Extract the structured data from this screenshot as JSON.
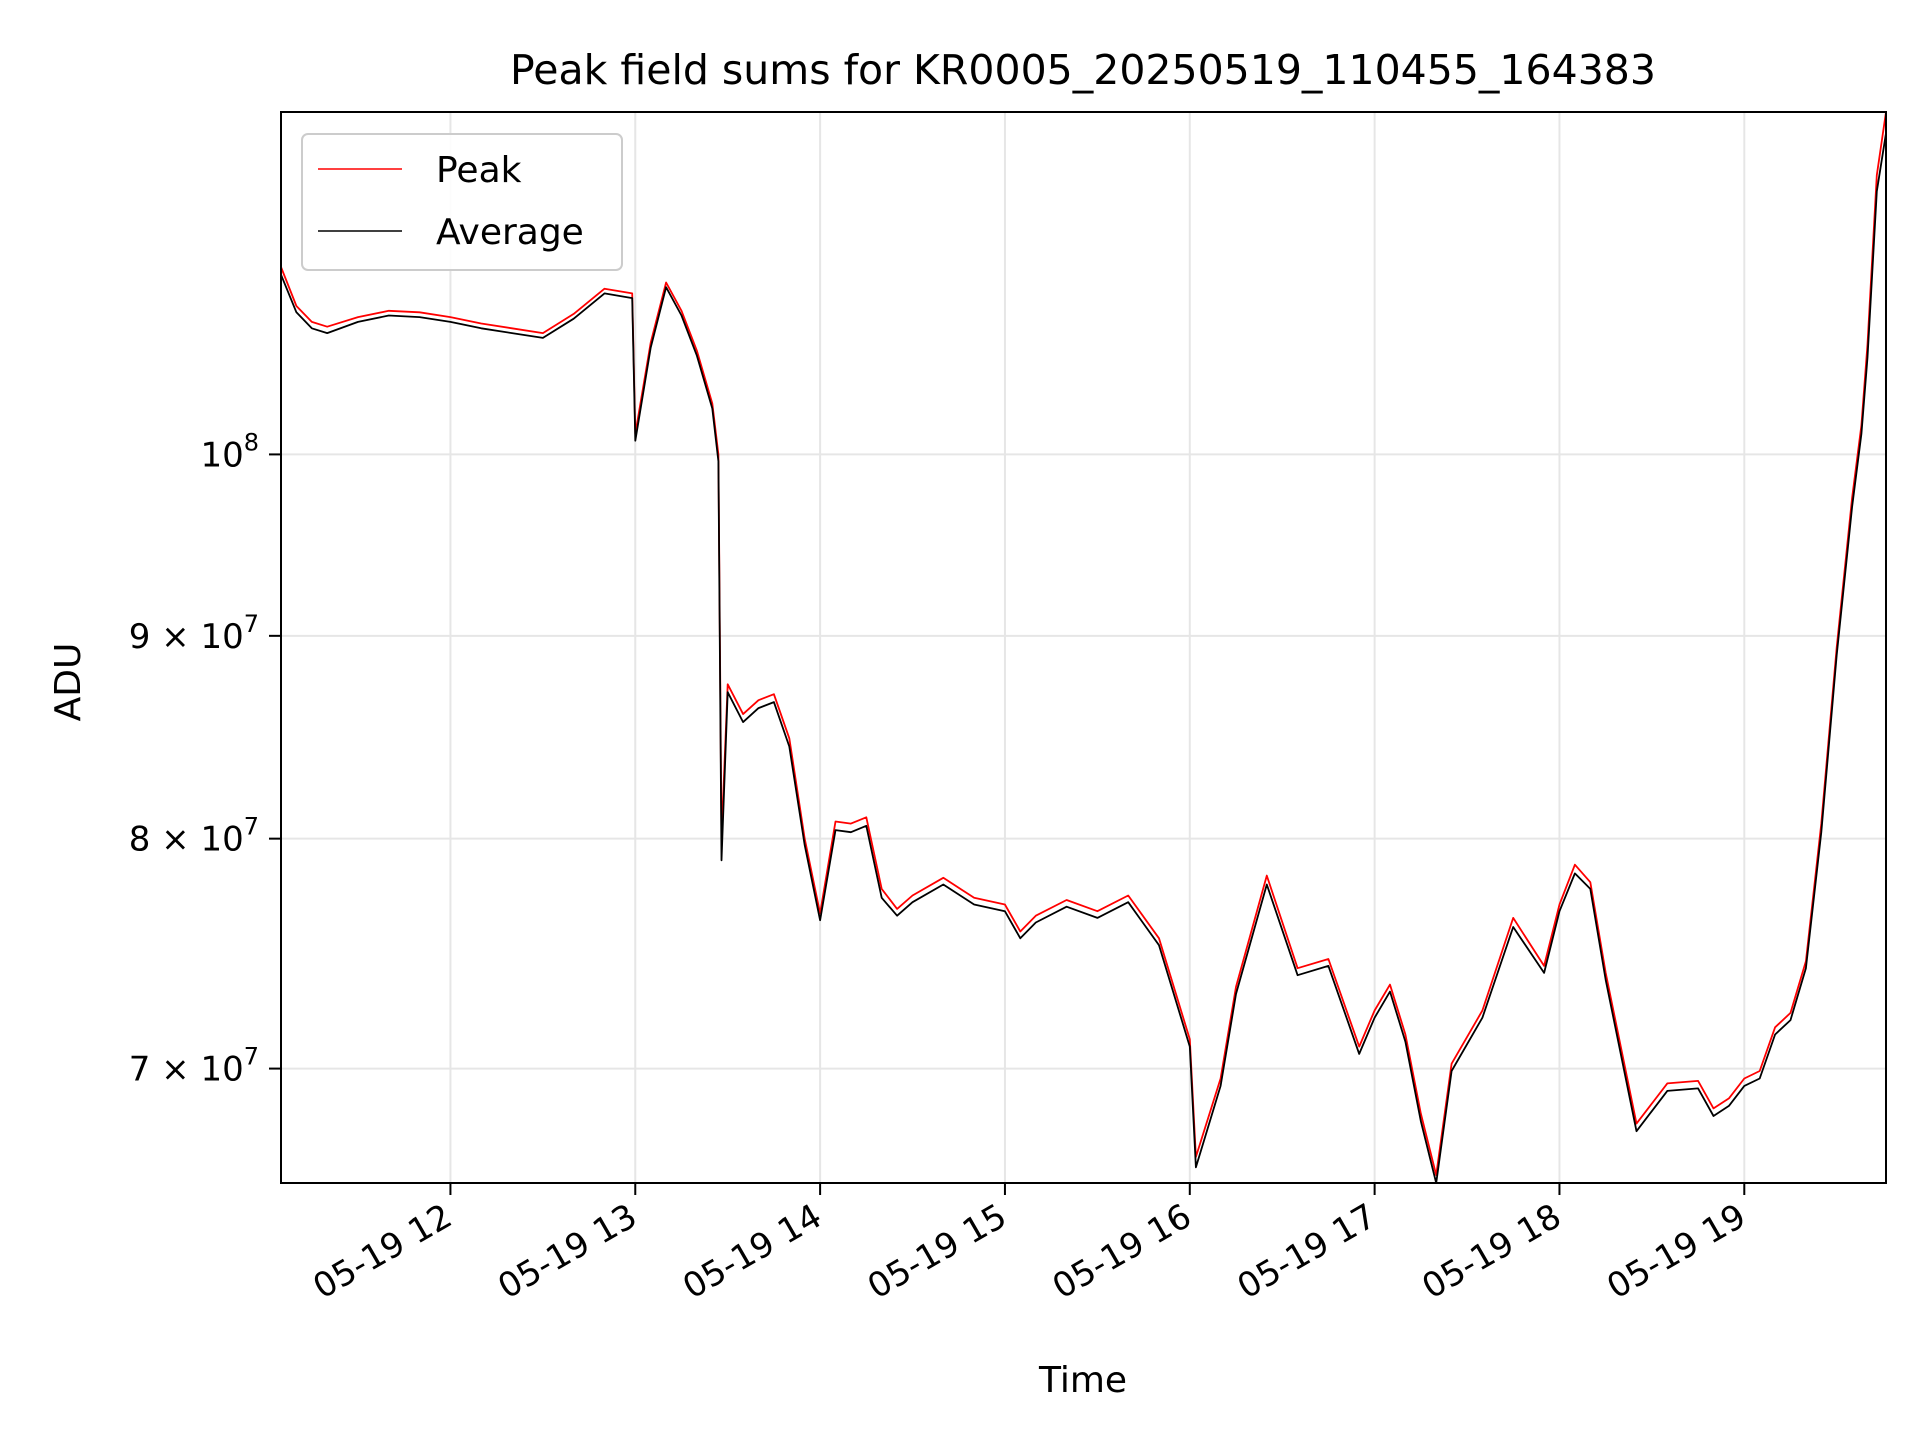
{
  "chart_data": {
    "type": "line",
    "title": "Peak field sums for KR0005_20250519_110455_164383",
    "xlabel": "Time",
    "ylabel": "ADU",
    "yscale": "log",
    "grid": true,
    "legend_position": "top-left",
    "xlim": [
      "05-19 11:05",
      "05-19 19:46"
    ],
    "ylim": [
      65500000,
      122000000
    ],
    "x_ticks": [
      {
        "value": "05-19 12:00",
        "label": "05-19 12"
      },
      {
        "value": "05-19 13:00",
        "label": "05-19 13"
      },
      {
        "value": "05-19 14:00",
        "label": "05-19 14"
      },
      {
        "value": "05-19 15:00",
        "label": "05-19 15"
      },
      {
        "value": "05-19 16:00",
        "label": "05-19 16"
      },
      {
        "value": "05-19 17:00",
        "label": "05-19 17"
      },
      {
        "value": "05-19 18:00",
        "label": "05-19 18"
      },
      {
        "value": "05-19 19:00",
        "label": "05-19 19"
      }
    ],
    "y_ticks": [
      {
        "value": 70000000,
        "label": "7 × 10⁷",
        "mantissa": "7 × 10",
        "exp": "7"
      },
      {
        "value": 80000000,
        "label": "8 × 10⁷",
        "mantissa": "8 × 10",
        "exp": "7"
      },
      {
        "value": 90000000,
        "label": "9 × 10⁷",
        "mantissa": "9 × 10",
        "exp": "7"
      },
      {
        "value": 100000000,
        "label": "10⁸",
        "mantissa": "10",
        "exp": "8"
      }
    ],
    "series": [
      {
        "name": "Peak",
        "color": "#ff0000",
        "x": [
          "05-19 11:05",
          "05-19 11:10",
          "05-19 11:15",
          "05-19 11:20",
          "05-19 11:30",
          "05-19 11:40",
          "05-19 11:50",
          "05-19 12:00",
          "05-19 12:10",
          "05-19 12:20",
          "05-19 12:30",
          "05-19 12:40",
          "05-19 12:50",
          "05-19 12:59",
          "05-19 13:00",
          "05-19 13:05",
          "05-19 13:10",
          "05-19 13:15",
          "05-19 13:20",
          "05-19 13:25",
          "05-19 13:27",
          "05-19 13:28",
          "05-19 13:30",
          "05-19 13:35",
          "05-19 13:40",
          "05-19 13:45",
          "05-19 13:50",
          "05-19 13:55",
          "05-19 14:00",
          "05-19 14:05",
          "05-19 14:10",
          "05-19 14:15",
          "05-19 14:20",
          "05-19 14:25",
          "05-19 14:30",
          "05-19 14:40",
          "05-19 14:50",
          "05-19 15:00",
          "05-19 15:05",
          "05-19 15:10",
          "05-19 15:20",
          "05-19 15:30",
          "05-19 15:40",
          "05-19 15:50",
          "05-19 16:00",
          "05-19 16:02",
          "05-19 16:10",
          "05-19 16:15",
          "05-19 16:25",
          "05-19 16:35",
          "05-19 16:45",
          "05-19 16:55",
          "05-19 17:00",
          "05-19 17:05",
          "05-19 17:10",
          "05-19 17:15",
          "05-19 17:20",
          "05-19 17:25",
          "05-19 17:35",
          "05-19 17:45",
          "05-19 17:55",
          "05-19 18:00",
          "05-19 18:05",
          "05-19 18:10",
          "05-19 18:15",
          "05-19 18:25",
          "05-19 18:35",
          "05-19 18:45",
          "05-19 18:50",
          "05-19 18:55",
          "05-19 19:00",
          "05-19 19:05",
          "05-19 19:10",
          "05-19 19:15",
          "05-19 19:20",
          "05-19 19:25",
          "05-19 19:30",
          "05-19 19:35",
          "05-19 19:38",
          "05-19 19:40",
          "05-19 19:43",
          "05-19 19:46"
        ],
        "y": [
          111500000,
          109000000,
          108000000,
          107700000,
          108300000,
          108700000,
          108600000,
          108300000,
          107900000,
          107600000,
          107300000,
          108500000,
          110100000,
          109800000,
          101200000,
          106700000,
          110500000,
          108700000,
          106200000,
          103000000,
          100000000,
          80000000,
          87500000,
          86000000,
          86700000,
          87000000,
          84800000,
          80000000,
          76600000,
          80800000,
          80700000,
          81000000,
          77700000,
          76800000,
          77400000,
          78200000,
          77300000,
          77000000,
          75800000,
          76500000,
          77200000,
          76700000,
          77400000,
          75500000,
          71200000,
          66500000,
          69600000,
          73400000,
          78300000,
          74200000,
          74600000,
          70900000,
          72400000,
          73500000,
          71400000,
          68200000,
          65800000,
          70200000,
          72400000,
          76400000,
          74300000,
          77000000,
          78800000,
          78000000,
          74000000,
          67800000,
          69400000,
          69500000,
          68400000,
          68800000,
          69600000,
          69900000,
          71700000,
          72300000,
          74500000,
          80700000,
          89400000,
          97500000,
          101700000,
          106600000,
          117600000,
          122000000
        ]
      },
      {
        "name": "Average",
        "color": "#000000",
        "x": [
          "05-19 11:05",
          "05-19 11:10",
          "05-19 11:15",
          "05-19 11:20",
          "05-19 11:30",
          "05-19 11:40",
          "05-19 11:50",
          "05-19 12:00",
          "05-19 12:10",
          "05-19 12:20",
          "05-19 12:30",
          "05-19 12:40",
          "05-19 12:50",
          "05-19 12:59",
          "05-19 13:00",
          "05-19 13:05",
          "05-19 13:10",
          "05-19 13:15",
          "05-19 13:20",
          "05-19 13:25",
          "05-19 13:27",
          "05-19 13:28",
          "05-19 13:30",
          "05-19 13:35",
          "05-19 13:40",
          "05-19 13:45",
          "05-19 13:50",
          "05-19 13:55",
          "05-19 14:00",
          "05-19 14:05",
          "05-19 14:10",
          "05-19 14:15",
          "05-19 14:20",
          "05-19 14:25",
          "05-19 14:30",
          "05-19 14:40",
          "05-19 14:50",
          "05-19 15:00",
          "05-19 15:05",
          "05-19 15:10",
          "05-19 15:20",
          "05-19 15:30",
          "05-19 15:40",
          "05-19 15:50",
          "05-19 16:00",
          "05-19 16:02",
          "05-19 16:10",
          "05-19 16:15",
          "05-19 16:25",
          "05-19 16:35",
          "05-19 16:45",
          "05-19 16:55",
          "05-19 17:00",
          "05-19 17:05",
          "05-19 17:10",
          "05-19 17:15",
          "05-19 17:20",
          "05-19 17:25",
          "05-19 17:35",
          "05-19 17:45",
          "05-19 17:55",
          "05-19 18:00",
          "05-19 18:05",
          "05-19 18:10",
          "05-19 18:15",
          "05-19 18:25",
          "05-19 18:35",
          "05-19 18:45",
          "05-19 18:50",
          "05-19 18:55",
          "05-19 19:00",
          "05-19 19:05",
          "05-19 19:10",
          "05-19 19:15",
          "05-19 19:20",
          "05-19 19:25",
          "05-19 19:30",
          "05-19 19:35",
          "05-19 19:38",
          "05-19 19:40",
          "05-19 19:43",
          "05-19 19:46"
        ],
        "y": [
          111000000,
          108600000,
          107600000,
          107300000,
          108000000,
          108400000,
          108300000,
          108000000,
          107600000,
          107300000,
          107000000,
          108200000,
          109800000,
          109500000,
          100800000,
          106400000,
          110200000,
          108400000,
          105900000,
          102700000,
          99600000,
          79000000,
          87100000,
          85600000,
          86300000,
          86600000,
          84400000,
          79700000,
          76300000,
          80400000,
          80300000,
          80600000,
          77300000,
          76500000,
          77100000,
          77900000,
          77000000,
          76700000,
          75500000,
          76200000,
          76900000,
          76400000,
          77100000,
          75200000,
          70900000,
          66100000,
          69300000,
          73100000,
          77900000,
          73900000,
          74300000,
          70600000,
          72100000,
          73200000,
          71100000,
          67900000,
          65500000,
          69900000,
          72100000,
          76000000,
          74000000,
          76700000,
          78400000,
          77700000,
          73700000,
          67500000,
          69100000,
          69200000,
          68100000,
          68500000,
          69300000,
          69600000,
          71400000,
          72000000,
          74200000,
          80300000,
          89000000,
          97000000,
          101200000,
          105800000,
          116500000,
          120500000
        ]
      }
    ]
  }
}
